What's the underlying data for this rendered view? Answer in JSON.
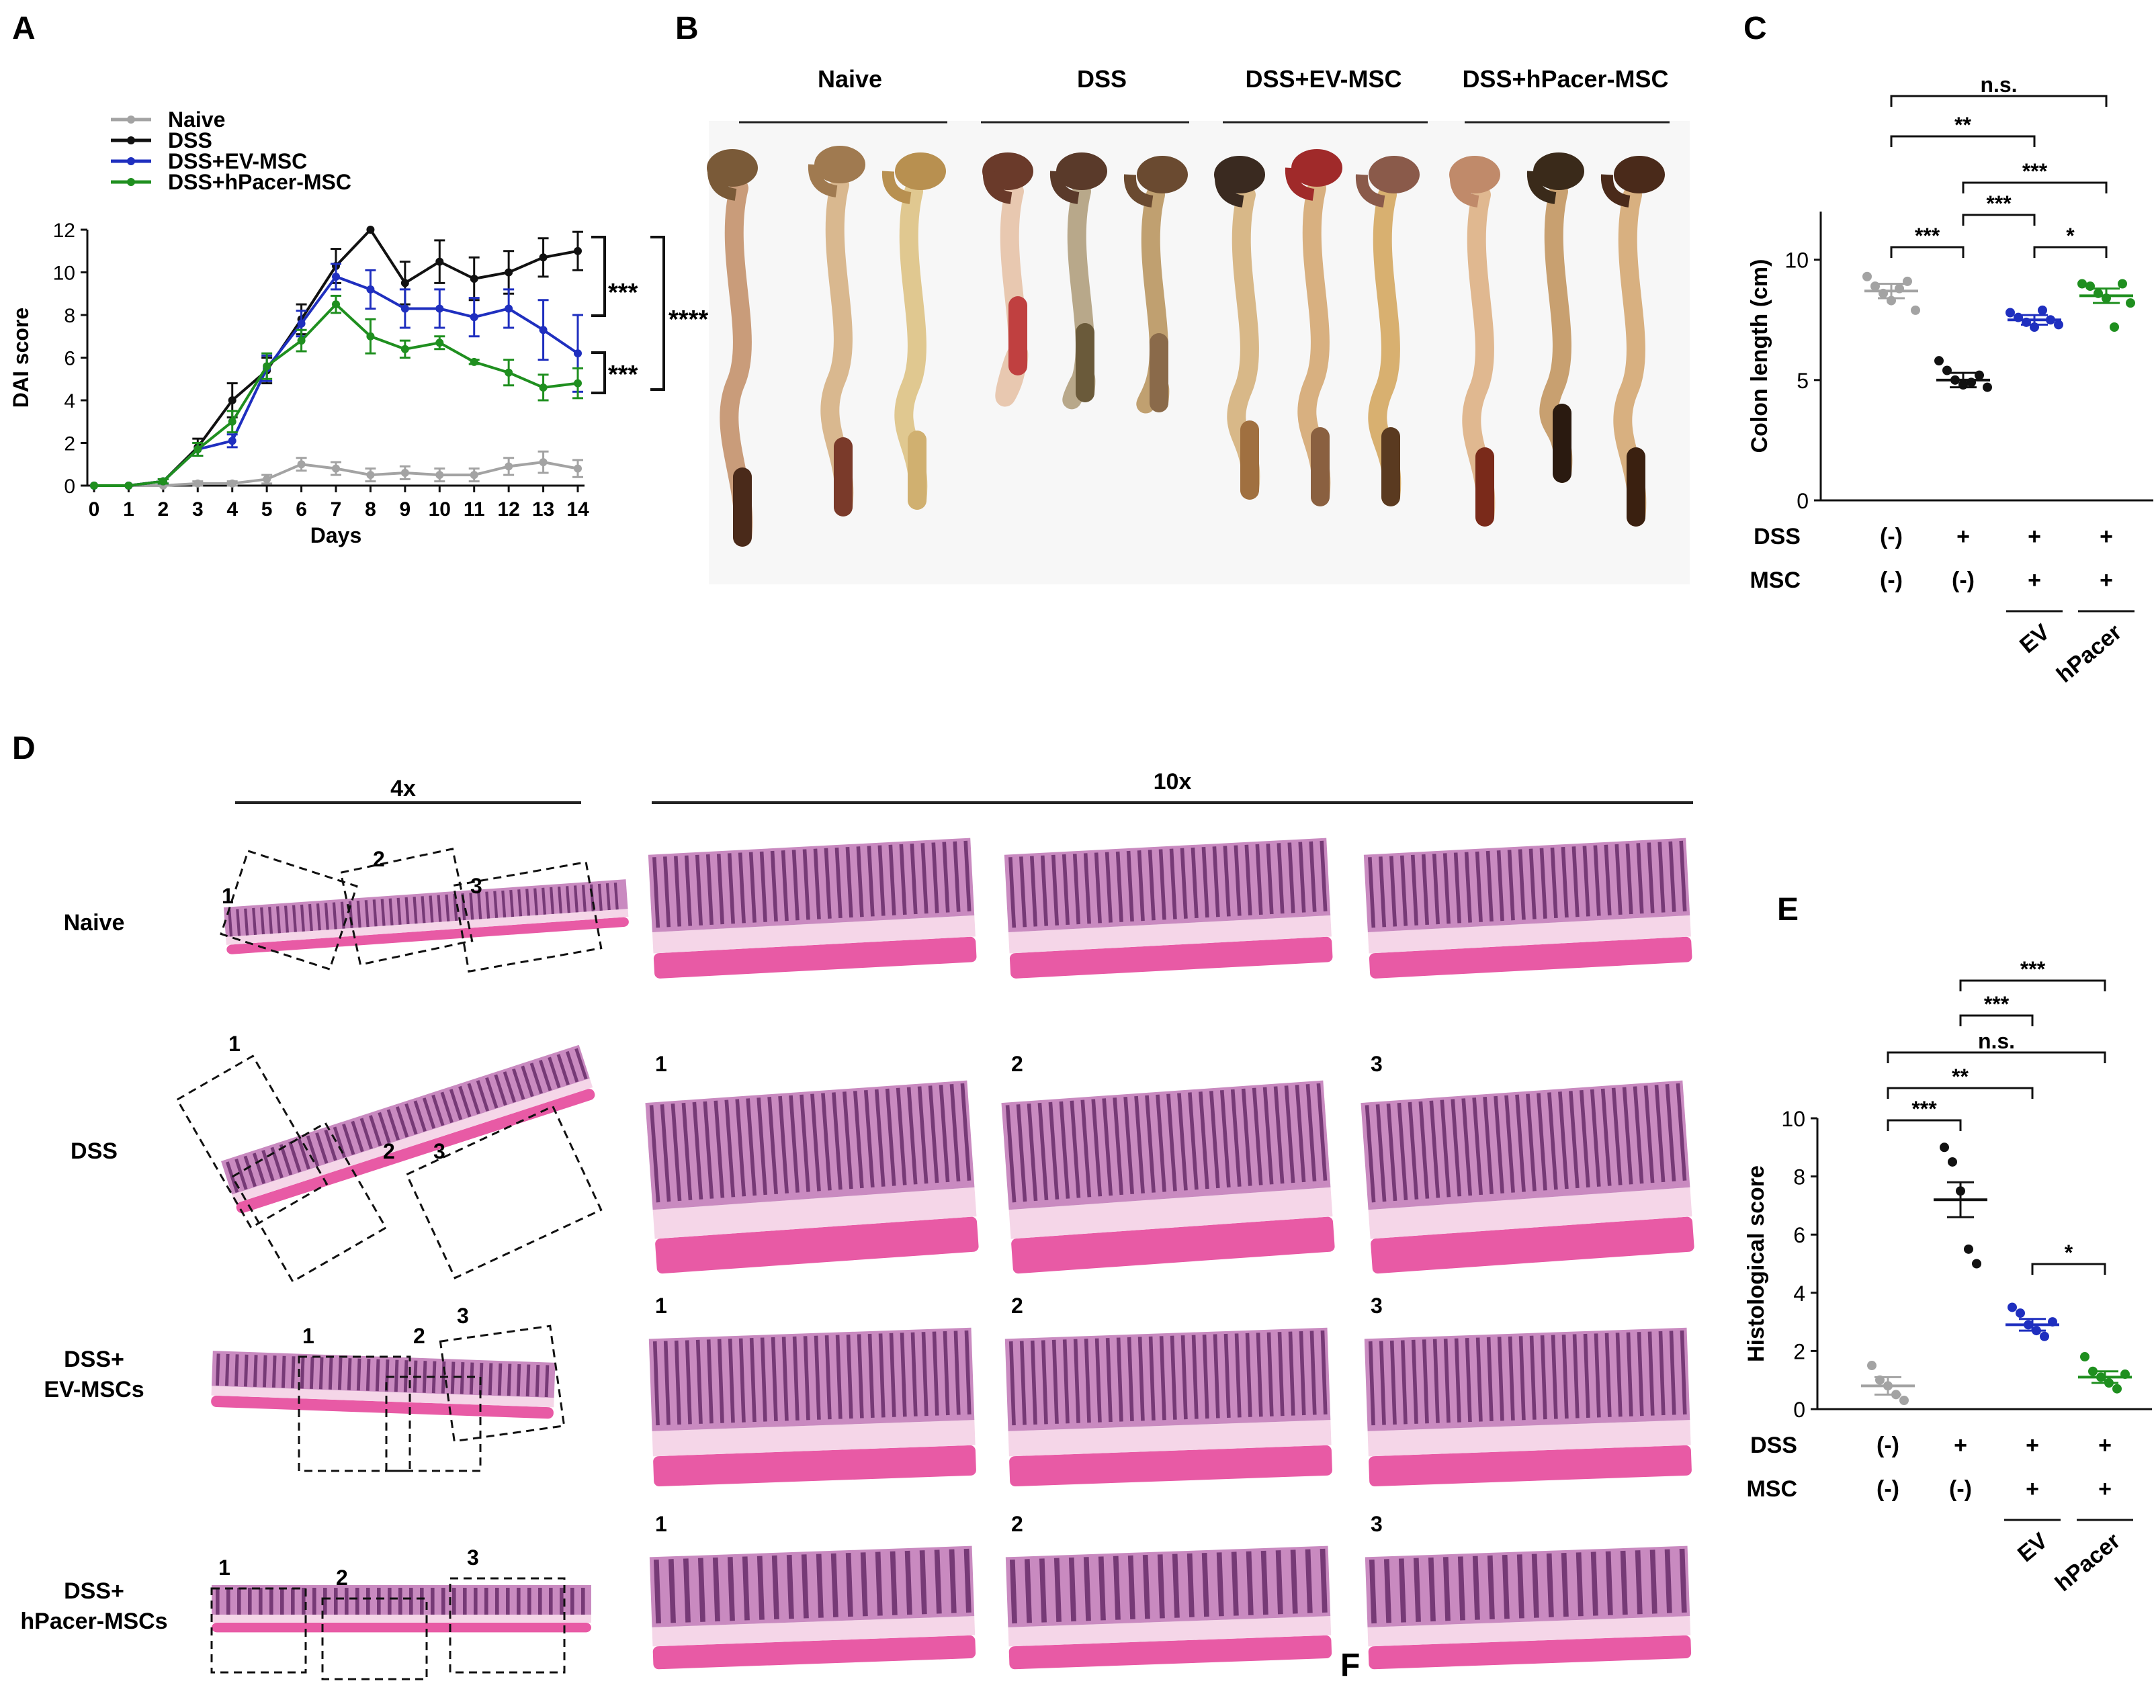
{
  "colors": {
    "naive": "#a3a3a3",
    "dss": "#111111",
    "ev": "#1f2fbf",
    "hpacer": "#1f8f1f",
    "tissue_pink": "#e85aa5",
    "tissue_purple": "#5a1f5e",
    "colon_tan": "#c9a47a"
  },
  "panels": {
    "A": {
      "label": "A",
      "legend": [
        "Naive",
        "DSS",
        "DSS+EV-MSC",
        "DSS+hPacer-MSC"
      ],
      "sig_top": "***",
      "sig_bottom": "***",
      "sig_outer": "****"
    },
    "B": {
      "label": "B",
      "groups": [
        "Naive",
        "DSS",
        "DSS+EV-MSC",
        "DSS+hPacer-MSC"
      ]
    },
    "C": {
      "label": "C",
      "row_dss_label": "DSS",
      "row_msc_label": "MSC",
      "dss_values": [
        "(-)",
        "+",
        "+",
        "+"
      ],
      "msc_values": [
        "(-)",
        "(-)",
        "+",
        "+"
      ],
      "group_names": [
        "EV",
        "hPacer"
      ],
      "brackets": [
        "n.s.",
        "**",
        "***",
        "***",
        "***",
        "*"
      ]
    },
    "D": {
      "label": "D",
      "mag_4x": "4x",
      "mag_10x": "10x",
      "rows": [
        "Naive",
        "DSS",
        "DSS+",
        "EV-MSCs",
        "DSS+",
        "hPacer-MSCs"
      ],
      "field_numbers": [
        "1",
        "2",
        "3"
      ]
    },
    "E": {
      "label": "E",
      "row_dss_label": "DSS",
      "row_msc_label": "MSC",
      "dss_values": [
        "(-)",
        "+",
        "+",
        "+"
      ],
      "msc_values": [
        "(-)",
        "(-)",
        "+",
        "+"
      ],
      "group_names": [
        "EV",
        "hPacer"
      ],
      "brackets": [
        "***",
        "***",
        "n.s.",
        "**",
        "***",
        "*"
      ]
    },
    "F": {
      "label": "F"
    }
  },
  "chart_data": [
    {
      "type": "line",
      "panel": "A",
      "xlabel": "Days",
      "ylabel": "DAI score",
      "x": [
        0,
        1,
        2,
        3,
        4,
        5,
        6,
        7,
        8,
        9,
        10,
        11,
        12,
        13,
        14
      ],
      "xlim": [
        0,
        14
      ],
      "ylim": [
        0,
        12
      ],
      "yticks": [
        0,
        2,
        4,
        6,
        8,
        10,
        12
      ],
      "series": [
        {
          "name": "Naive",
          "color": "#a3a3a3",
          "values": [
            0,
            0,
            0,
            0.1,
            0.1,
            0.3,
            1.0,
            0.8,
            0.5,
            0.6,
            0.5,
            0.5,
            0.9,
            1.1,
            0.8
          ],
          "errors": [
            0,
            0,
            0,
            0.1,
            0.1,
            0.2,
            0.3,
            0.3,
            0.3,
            0.3,
            0.3,
            0.3,
            0.4,
            0.5,
            0.4
          ]
        },
        {
          "name": "DSS",
          "color": "#111111",
          "values": [
            0,
            0,
            0.2,
            1.8,
            4.0,
            5.4,
            7.8,
            10.3,
            12.0,
            9.5,
            10.5,
            9.7,
            10.0,
            10.7,
            11.0
          ],
          "errors": [
            0,
            0,
            0.1,
            0.4,
            0.8,
            0.6,
            0.7,
            0.8,
            0,
            1.0,
            1.0,
            1.0,
            1.0,
            0.9,
            0.9
          ]
        },
        {
          "name": "DSS+EV-MSC",
          "color": "#1f2fbf",
          "values": [
            0,
            0,
            0.2,
            1.7,
            2.1,
            5.5,
            7.6,
            9.8,
            9.2,
            8.3,
            8.3,
            7.9,
            8.3,
            7.3,
            6.2
          ],
          "errors": [
            0,
            0,
            0.1,
            0.3,
            0.3,
            0.6,
            0.6,
            0.6,
            0.9,
            0.9,
            0.9,
            0.9,
            0.9,
            1.4,
            1.8
          ]
        },
        {
          "name": "DSS+hPacer-MSC",
          "color": "#1f8f1f",
          "values": [
            0,
            0,
            0.2,
            1.7,
            3.0,
            5.6,
            6.8,
            8.5,
            7.0,
            6.4,
            6.7,
            5.8,
            5.3,
            4.6,
            4.8
          ],
          "errors": [
            0,
            0,
            0.1,
            0.3,
            0.5,
            0.6,
            0.5,
            0.4,
            0.8,
            0.4,
            0.3,
            0.1,
            0.6,
            0.6,
            0.7
          ]
        }
      ]
    },
    {
      "type": "scatter",
      "panel": "C",
      "ylabel": "Colon length (cm)",
      "ylim": [
        0,
        12
      ],
      "yticks": [
        0,
        5,
        10
      ],
      "groups": [
        {
          "name": "Naive",
          "color": "#a3a3a3",
          "mean": 8.7,
          "sem": 0.3,
          "points": [
            9.3,
            8.9,
            8.6,
            8.3,
            8.8,
            9.1,
            7.9
          ]
        },
        {
          "name": "DSS",
          "color": "#111111",
          "mean": 5.0,
          "sem": 0.3,
          "points": [
            5.8,
            5.4,
            5.0,
            4.8,
            4.9,
            5.2,
            4.7
          ]
        },
        {
          "name": "DSS+EV-MSC",
          "color": "#1f2fbf",
          "mean": 7.5,
          "sem": 0.2,
          "points": [
            7.8,
            7.6,
            7.4,
            7.2,
            7.9,
            7.5,
            7.3
          ]
        },
        {
          "name": "DSS+hPacer-MSC",
          "color": "#1f8f1f",
          "mean": 8.5,
          "sem": 0.3,
          "points": [
            9.0,
            8.9,
            8.6,
            8.4,
            7.2,
            9.0,
            8.2
          ]
        }
      ]
    },
    {
      "type": "scatter",
      "panel": "E",
      "ylabel": "Histological score",
      "ylim": [
        0,
        10
      ],
      "yticks": [
        0,
        2,
        4,
        6,
        8,
        10
      ],
      "groups": [
        {
          "name": "Naive",
          "color": "#a3a3a3",
          "mean": 0.8,
          "sem": 0.3,
          "points": [
            1.5,
            1.0,
            0.8,
            0.5,
            0.3
          ]
        },
        {
          "name": "DSS",
          "color": "#111111",
          "mean": 7.2,
          "sem": 0.6,
          "points": [
            9.0,
            8.5,
            7.5,
            5.5,
            5.0
          ]
        },
        {
          "name": "DSS+EV-MSC",
          "color": "#1f2fbf",
          "mean": 2.9,
          "sem": 0.2,
          "points": [
            3.5,
            3.3,
            2.9,
            2.7,
            2.5,
            3.0
          ]
        },
        {
          "name": "DSS+hPacer-MSC",
          "color": "#1f8f1f",
          "mean": 1.1,
          "sem": 0.2,
          "points": [
            1.8,
            1.3,
            1.1,
            0.9,
            0.7,
            1.2
          ]
        }
      ]
    }
  ]
}
